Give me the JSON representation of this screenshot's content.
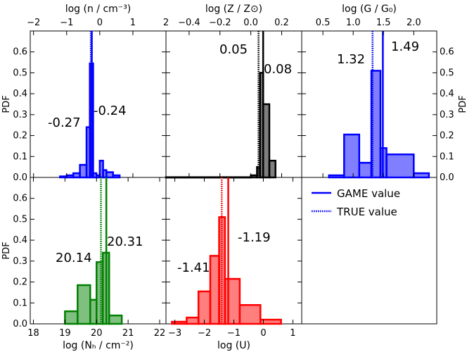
{
  "legend": {
    "game_label": "GAME value",
    "true_label": "TRUE value",
    "color": "#0000ff"
  },
  "chart_data": [
    {
      "id": "density",
      "type": "histogram",
      "color": "#0000ff",
      "xlabel": "log (n / cm⁻³)",
      "xlabel_position": "top",
      "ylabel": "PDF",
      "ylabel_side": "left",
      "xlim": [
        -2.1,
        2.0
      ],
      "ylim": [
        0,
        0.7
      ],
      "xticks": [
        -2,
        -1,
        0,
        1,
        2
      ],
      "xtick_labels": [
        "−2",
        "−1",
        "0",
        "1",
        "2"
      ],
      "yticks": [
        0.0,
        0.1,
        0.2,
        0.3,
        0.4,
        0.5,
        0.6
      ],
      "ytick_labels": [
        "0.0",
        "0.1",
        "0.2",
        "0.3",
        "0.4",
        "0.5",
        "0.6"
      ],
      "bin_edges": [
        -1.2,
        -1.0,
        -0.8,
        -0.6,
        -0.4,
        -0.3,
        -0.2,
        -0.1,
        0.0,
        0.1,
        0.2,
        0.4,
        0.6
      ],
      "values": [
        0.005,
        0.01,
        0.02,
        0.06,
        0.24,
        0.545,
        0.02,
        0.01,
        0.08,
        0.035,
        0.025,
        0.01
      ],
      "game_value": -0.24,
      "true_value": -0.27,
      "game_label": "-0.24",
      "true_label": "-0.27"
    },
    {
      "id": "metallicity",
      "type": "histogram",
      "color": "#000000",
      "xlabel": "log (Z / Z⊙)",
      "xlabel_position": "top",
      "xlim": [
        -0.55,
        0.33
      ],
      "ylim": [
        0,
        0.7
      ],
      "xticks": [
        -0.4,
        -0.2,
        0.0,
        0.2
      ],
      "xtick_labels": [
        "−0.4",
        "−0.2",
        "0.0",
        "0.2"
      ],
      "bin_edges": [
        -0.55,
        0.0,
        0.04,
        0.06,
        0.08,
        0.12,
        0.16
      ],
      "values": [
        0.001,
        0.01,
        0.05,
        0.5,
        0.35,
        0.08
      ],
      "game_value": 0.08,
      "true_value": 0.05,
      "game_label": "0.08",
      "true_label": "0.05"
    },
    {
      "id": "radiation_field",
      "type": "histogram",
      "color": "#0000ff",
      "xlabel": "log (G / G₀)",
      "xlabel_position": "top",
      "ylabel": "PDF",
      "ylabel_side": "right",
      "xlim": [
        0.15,
        2.38
      ],
      "ylim": [
        0,
        0.7
      ],
      "xticks": [
        0.5,
        1.0,
        1.5,
        2.0
      ],
      "xtick_labels": [
        "0.5",
        "1.0",
        "1.5",
        "2.0"
      ],
      "yticks": [
        0.0,
        0.1,
        0.2,
        0.3,
        0.4,
        0.5,
        0.6
      ],
      "ytick_labels": [
        "0.0",
        "0.1",
        "0.2",
        "0.3",
        "0.4",
        "0.5",
        "0.6"
      ],
      "bin_edges": [
        0.6,
        0.85,
        1.1,
        1.3,
        1.45,
        1.55,
        2.0,
        2.25
      ],
      "values": [
        0.01,
        0.205,
        0.07,
        0.51,
        0.14,
        0.11,
        0.02
      ],
      "game_value": 1.49,
      "true_value": 1.32,
      "game_label": "1.49",
      "true_label": "1.32"
    },
    {
      "id": "column_density",
      "type": "histogram",
      "color": "#008000",
      "xlabel": "log (Nₕ / cm⁻²)",
      "xlabel_position": "bottom",
      "ylabel": "PDF",
      "ylabel_side": "left",
      "xlim": [
        17.9,
        22.2
      ],
      "ylim": [
        0,
        0.7
      ],
      "xticks": [
        18,
        19,
        20,
        21,
        22
      ],
      "xtick_labels": [
        "18",
        "19",
        "20",
        "21",
        "22"
      ],
      "yticks": [
        0.0,
        0.1,
        0.2,
        0.3,
        0.4,
        0.5,
        0.6
      ],
      "ytick_labels": [
        "0.0",
        "0.1",
        "0.2",
        "0.3",
        "0.4",
        "0.5",
        "0.6"
      ],
      "bin_edges": [
        19.0,
        19.4,
        19.8,
        20.0,
        20.2,
        20.4,
        20.8
      ],
      "values": [
        0.06,
        0.185,
        0.115,
        0.295,
        0.34,
        0.04
      ],
      "game_value": 20.31,
      "true_value": 20.14,
      "game_label": "20.31",
      "true_label": "20.14"
    },
    {
      "id": "ionization_parameter",
      "type": "histogram",
      "color": "#ff0000",
      "xlabel": "log (U)",
      "xlabel_position": "bottom",
      "xlim": [
        -3.3,
        1.3
      ],
      "ylim": [
        0,
        0.7
      ],
      "xticks": [
        -3,
        -2,
        -1,
        0,
        1
      ],
      "xtick_labels": [
        "−3",
        "−2",
        "−1",
        "0",
        "1"
      ],
      "bin_edges": [
        -3.1,
        -2.6,
        -2.2,
        -1.8,
        -1.5,
        -1.3,
        -0.8,
        -0.1,
        0.6
      ],
      "values": [
        0.01,
        0.03,
        0.155,
        0.325,
        0.51,
        0.215,
        0.09,
        0.02
      ],
      "game_value": -1.19,
      "true_value": -1.41,
      "game_label": "-1.19",
      "true_label": "-1.41"
    }
  ]
}
